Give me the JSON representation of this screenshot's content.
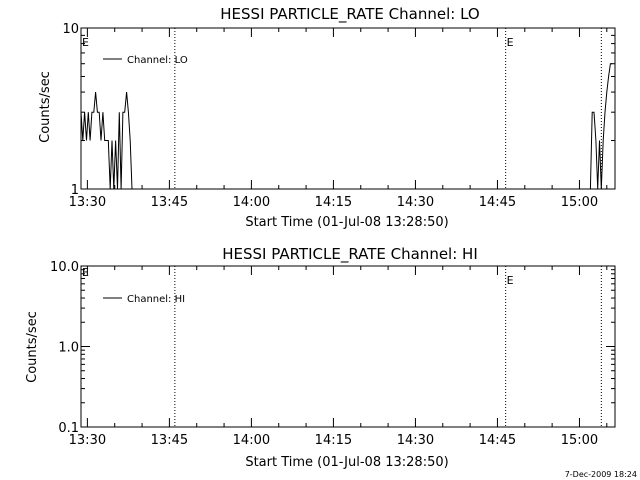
{
  "chart_data": [
    {
      "type": "line",
      "title": "HESSI PARTICLE_RATE Channel: LO",
      "xlabel": "Start Time (01-Jul-08 13:28:50)",
      "ylabel": "Counts/sec",
      "y_scale": "log",
      "ylim": [
        1,
        10
      ],
      "xlim": [
        "13:28:50",
        "15:06:30"
      ],
      "x_ticks": [
        "13:30",
        "13:45",
        "14:00",
        "14:15",
        "14:30",
        "14:45",
        "15:00"
      ],
      "y_ticks": [
        "1",
        "10"
      ],
      "legend": {
        "placement": "top-left",
        "entries": [
          "Channel: LO"
        ]
      },
      "event_lines": [
        {
          "x": "13:46:00",
          "label": ""
        },
        {
          "x": "14:46:30",
          "label": "E"
        },
        {
          "x": "15:04:00",
          "label": ""
        }
      ],
      "start_marker_label": "E",
      "grid": false,
      "series": [
        {
          "name": "Channel: LO",
          "segments": [
            {
              "x": [
                "13:28:50",
                "13:29:10",
                "13:29:30",
                "13:29:50",
                "13:30:10",
                "13:30:30",
                "13:30:50",
                "13:31:10",
                "13:31:30",
                "13:31:50",
                "13:32:10",
                "13:32:30",
                "13:32:50",
                "13:33:10",
                "13:33:30",
                "13:33:50",
                "13:34:10",
                "13:34:30",
                "13:34:50",
                "13:35:10",
                "13:35:30",
                "13:35:50",
                "13:36:10",
                "13:36:30",
                "13:36:50",
                "13:37:10",
                "13:37:30",
                "13:37:50",
                "13:38:10",
                "13:38:30",
                "13:38:50"
              ],
              "y": [
                3,
                2,
                3,
                2,
                3,
                2,
                3,
                3,
                4,
                3,
                3,
                2,
                3,
                2,
                2,
                2,
                1,
                2,
                1,
                2,
                1,
                3,
                1,
                3,
                3,
                4,
                3,
                2,
                1,
                1,
                1
              ]
            },
            {
              "x": [
                "15:02:00",
                "15:02:20",
                "15:02:40",
                "15:03:00",
                "15:03:20",
                "15:03:40",
                "15:04:00",
                "15:04:20",
                "15:04:40",
                "15:05:00",
                "15:05:20",
                "15:05:40",
                "15:06:00"
              ],
              "y": [
                1,
                3,
                3,
                2,
                1,
                2,
                1,
                2,
                3,
                4,
                5,
                6,
                6
              ]
            }
          ]
        }
      ]
    },
    {
      "type": "line",
      "title": "HESSI PARTICLE_RATE Channel: HI",
      "xlabel": "Start Time (01-Jul-08 13:28:50)",
      "ylabel": "Counts/sec",
      "y_scale": "log",
      "ylim": [
        0.1,
        10.0
      ],
      "xlim": [
        "13:28:50",
        "15:06:30"
      ],
      "x_ticks": [
        "13:30",
        "13:45",
        "14:00",
        "14:15",
        "14:30",
        "14:45",
        "15:00"
      ],
      "y_ticks": [
        "0.1",
        "1.0",
        "10.0"
      ],
      "legend": {
        "placement": "top-left",
        "entries": [
          "Channel: HI"
        ]
      },
      "event_lines": [
        {
          "x": "13:46:00",
          "label": ""
        },
        {
          "x": "14:46:30",
          "label": "E"
        },
        {
          "x": "15:04:00",
          "label": ""
        }
      ],
      "start_marker_label": "E",
      "grid": false,
      "series": [
        {
          "name": "Channel: HI",
          "segments": []
        }
      ]
    }
  ],
  "footer": {
    "timestamp": "7-Dec-2009 18:24"
  }
}
